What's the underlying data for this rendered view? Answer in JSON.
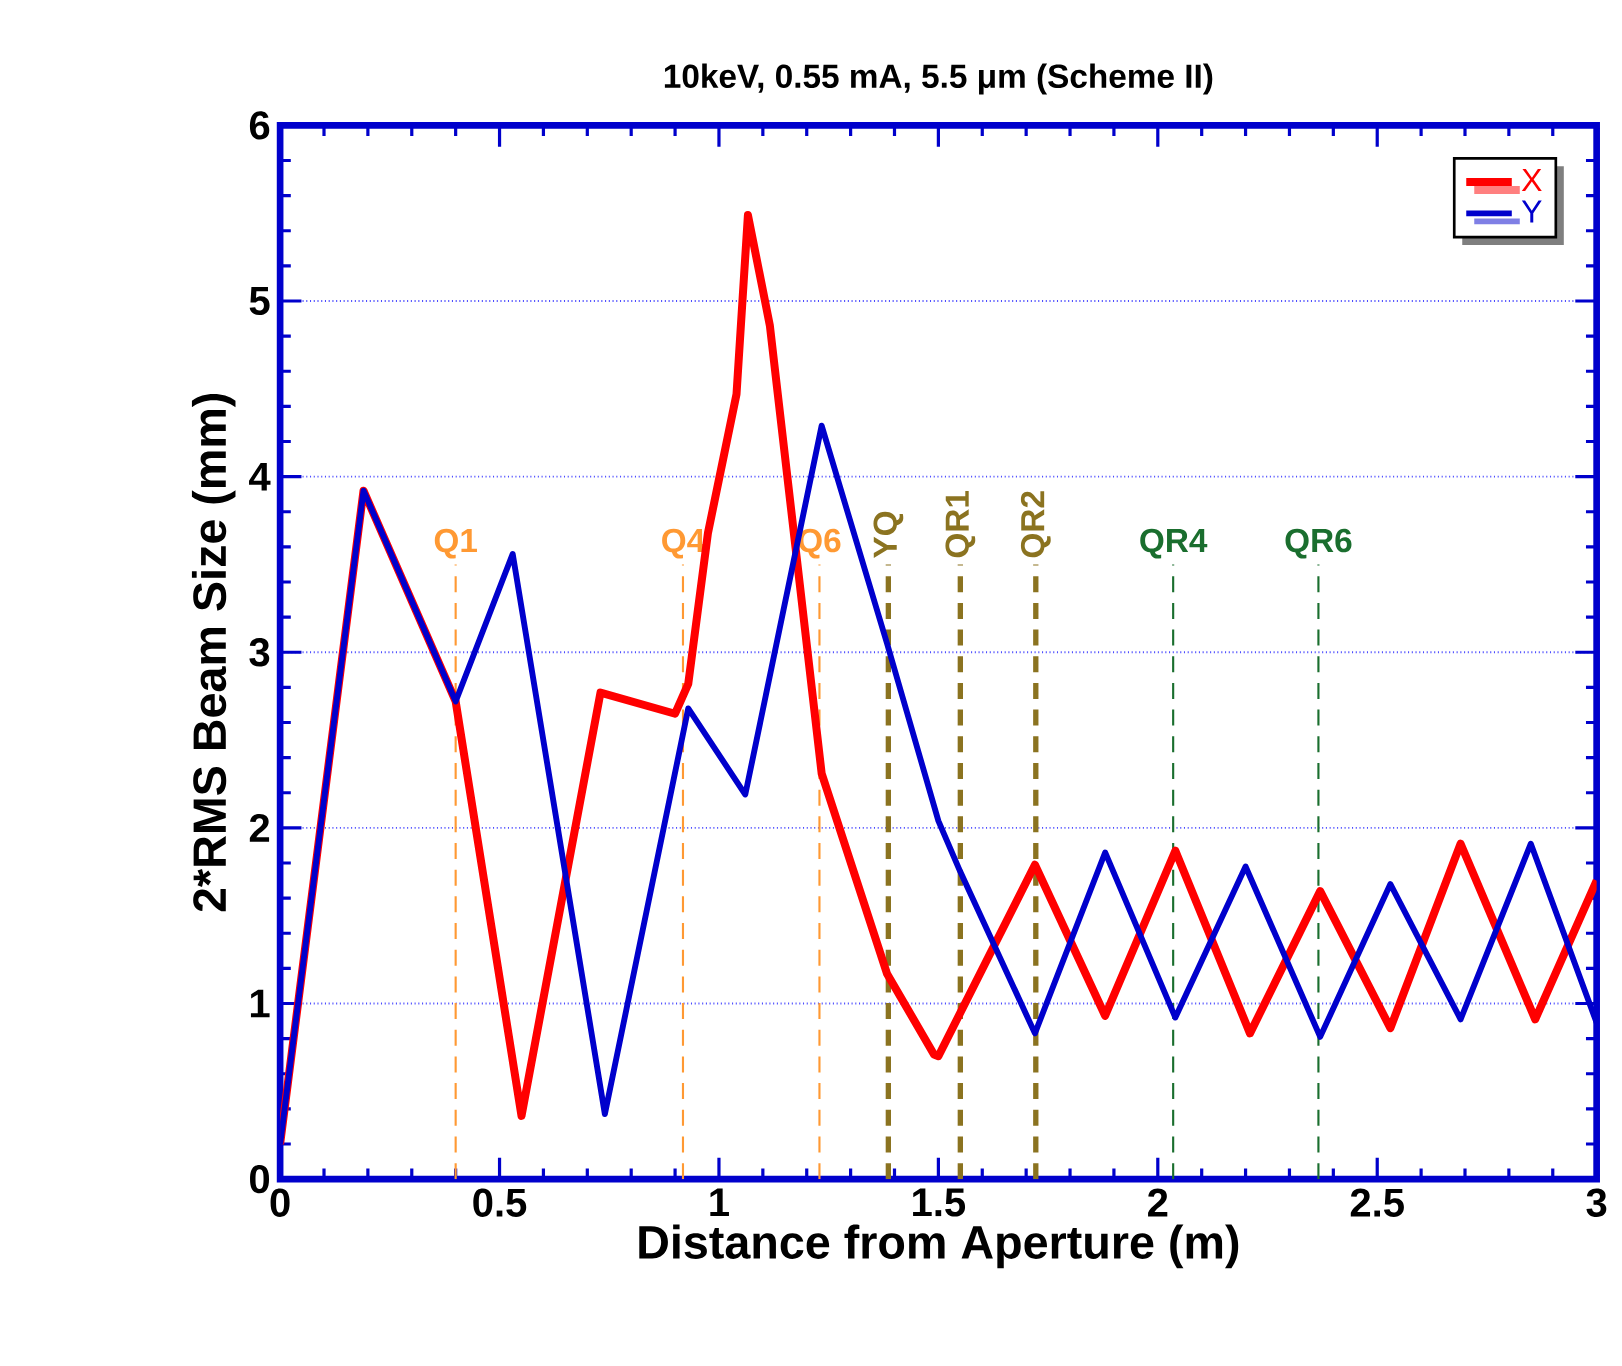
{
  "chart_data": {
    "type": "line",
    "title": "10keV, 0.55 mA, 5.5 μm (Scheme II)",
    "xlabel": "Distance from Aperture (m)",
    "ylabel": "2*RMS Beam Size (mm)",
    "xlim": [
      0,
      3
    ],
    "ylim": [
      0,
      6
    ],
    "xticks": [
      0,
      0.5,
      1,
      1.5,
      2,
      2.5,
      3
    ],
    "yticks": [
      0,
      1,
      2,
      3,
      4,
      5,
      6
    ],
    "grid": "y",
    "legend": "top right",
    "line_style": "solid",
    "series": [
      {
        "name": "X",
        "color": "#ff0000",
        "x": [
          0,
          0.19,
          0.4,
          0.55,
          0.73,
          0.9,
          0.93,
          0.975,
          1.04,
          1.066,
          1.116,
          1.234,
          1.383,
          1.49,
          1.5,
          1.72,
          1.88,
          2.04,
          2.21,
          2.37,
          2.53,
          2.69,
          2.86,
          3.0
        ],
        "values": [
          0.2,
          3.92,
          2.72,
          0.36,
          2.77,
          2.65,
          2.82,
          3.68,
          4.47,
          5.49,
          4.86,
          2.31,
          1.17,
          0.71,
          0.7,
          1.79,
          0.93,
          1.87,
          0.83,
          1.64,
          0.86,
          1.91,
          0.91,
          1.7
        ]
      },
      {
        "name": "Y",
        "color": "#0000cc",
        "x": [
          0,
          0.19,
          0.4,
          0.53,
          0.74,
          0.93,
          1.06,
          1.234,
          1.383,
          1.5,
          1.55,
          1.72,
          1.88,
          2.04,
          2.2,
          2.37,
          2.53,
          2.69,
          2.85,
          3.0
        ],
        "values": [
          0.2,
          3.92,
          2.72,
          3.56,
          0.37,
          2.68,
          2.19,
          4.29,
          3.05,
          2.04,
          1.75,
          0.83,
          1.86,
          0.92,
          1.78,
          0.81,
          1.68,
          0.91,
          1.91,
          0.89
        ]
      }
    ],
    "ref_lines": [
      {
        "axis": "x",
        "value": 0.4,
        "label": "Q1",
        "color": "#ff9933"
      },
      {
        "axis": "x",
        "value": 0.918,
        "label": "Q4",
        "color": "#ff9933"
      },
      {
        "axis": "x",
        "value": 1.229,
        "label": "Q6",
        "color": "#ff9933"
      },
      {
        "axis": "x",
        "value": 1.386,
        "label": "YQ",
        "color": "#8b7320"
      },
      {
        "axis": "x",
        "value": 1.55,
        "label": "QR1",
        "color": "#8b7320"
      },
      {
        "axis": "x",
        "value": 1.722,
        "label": "QR2",
        "color": "#8b7320"
      },
      {
        "axis": "x",
        "value": 2.035,
        "label": "QR4",
        "color": "#1a6e2e"
      },
      {
        "axis": "x",
        "value": 2.366,
        "label": "QR6",
        "color": "#1a6e2e"
      }
    ]
  }
}
